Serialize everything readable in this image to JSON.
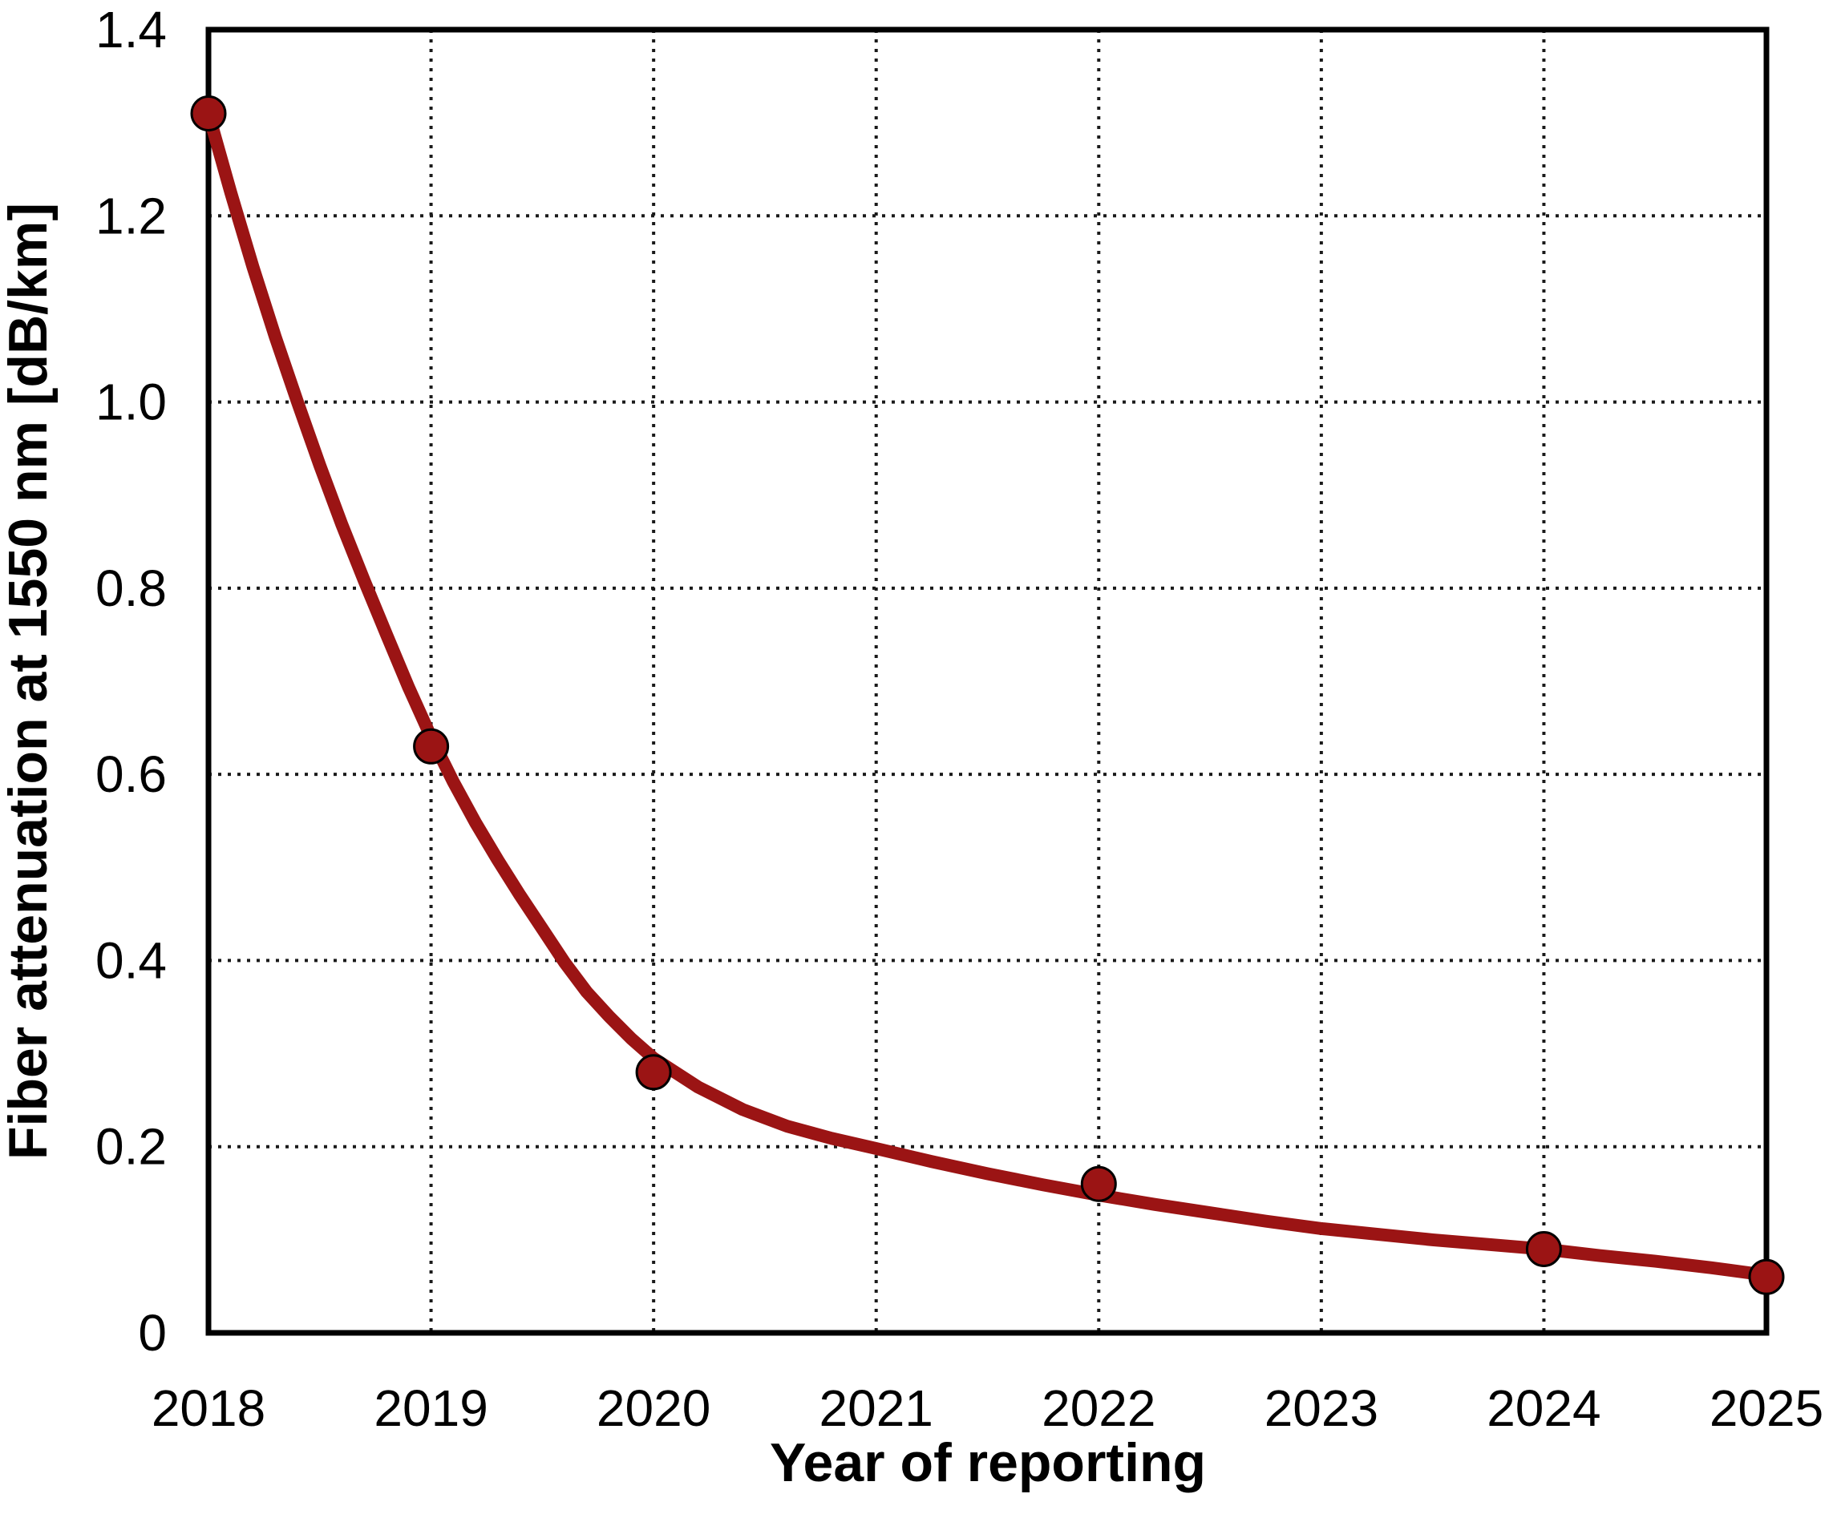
{
  "chart_data": {
    "type": "scatter",
    "title": "",
    "xlabel": "Year of reporting",
    "ylabel": "Fiber attenuation at 1550 nm [dB/km]",
    "xlim": [
      2018,
      2025
    ],
    "ylim": [
      0,
      1.4
    ],
    "x_tick_values": [
      2018,
      2019,
      2020,
      2021,
      2022,
      2023,
      2024,
      2025
    ],
    "x_tick_labels": [
      "2018",
      "2019",
      "2020",
      "2021",
      "2022",
      "2023",
      "2024",
      "2025"
    ],
    "y_tick_values": [
      0,
      0.2,
      0.4,
      0.6,
      0.8,
      1.0,
      1.2,
      1.4
    ],
    "y_tick_labels": [
      "0",
      "0.2",
      "0.4",
      "0.6",
      "0.8",
      "1.0",
      "1.2",
      "1.4"
    ],
    "x_gridlines": [
      2019,
      2020,
      2021,
      2022,
      2023,
      2024
    ],
    "y_gridlines": [
      0.2,
      0.4,
      0.6,
      0.8,
      1.0,
      1.2
    ],
    "grid_style": "dotted",
    "legend": "none",
    "points_x": [
      2018,
      2019,
      2020,
      2022,
      2024,
      2025
    ],
    "points_y": [
      1.31,
      0.63,
      0.28,
      0.16,
      0.09,
      0.06
    ],
    "fit_curve_x": [
      2018.0,
      2018.1,
      2018.2,
      2018.3,
      2018.4,
      2018.5,
      2018.6,
      2018.7,
      2018.8,
      2018.9,
      2019.0,
      2019.1,
      2019.2,
      2019.3,
      2019.4,
      2019.5,
      2019.6,
      2019.7,
      2019.8,
      2019.9,
      2020.0,
      2020.2,
      2020.4,
      2020.6,
      2020.8,
      2021.0,
      2021.25,
      2021.5,
      2021.75,
      2022.0,
      2022.25,
      2022.5,
      2022.75,
      2023.0,
      2023.25,
      2023.5,
      2023.75,
      2024.0,
      2024.25,
      2024.5,
      2024.75,
      2025.0
    ],
    "fit_curve_y": [
      1.31,
      1.225,
      1.145,
      1.07,
      1.0,
      0.932,
      0.868,
      0.808,
      0.75,
      0.693,
      0.64,
      0.592,
      0.548,
      0.508,
      0.47,
      0.434,
      0.398,
      0.366,
      0.34,
      0.316,
      0.295,
      0.264,
      0.24,
      0.222,
      0.209,
      0.198,
      0.184,
      0.171,
      0.159,
      0.148,
      0.138,
      0.129,
      0.12,
      0.112,
      0.106,
      0.1,
      0.095,
      0.09,
      0.083,
      0.077,
      0.07,
      0.062
    ],
    "colors": {
      "series": "#9B1414",
      "marker_outline": "#000000",
      "axis": "#000000",
      "grid": "#1A1A1A",
      "background": "#FFFFFF",
      "text": "#000000"
    }
  }
}
